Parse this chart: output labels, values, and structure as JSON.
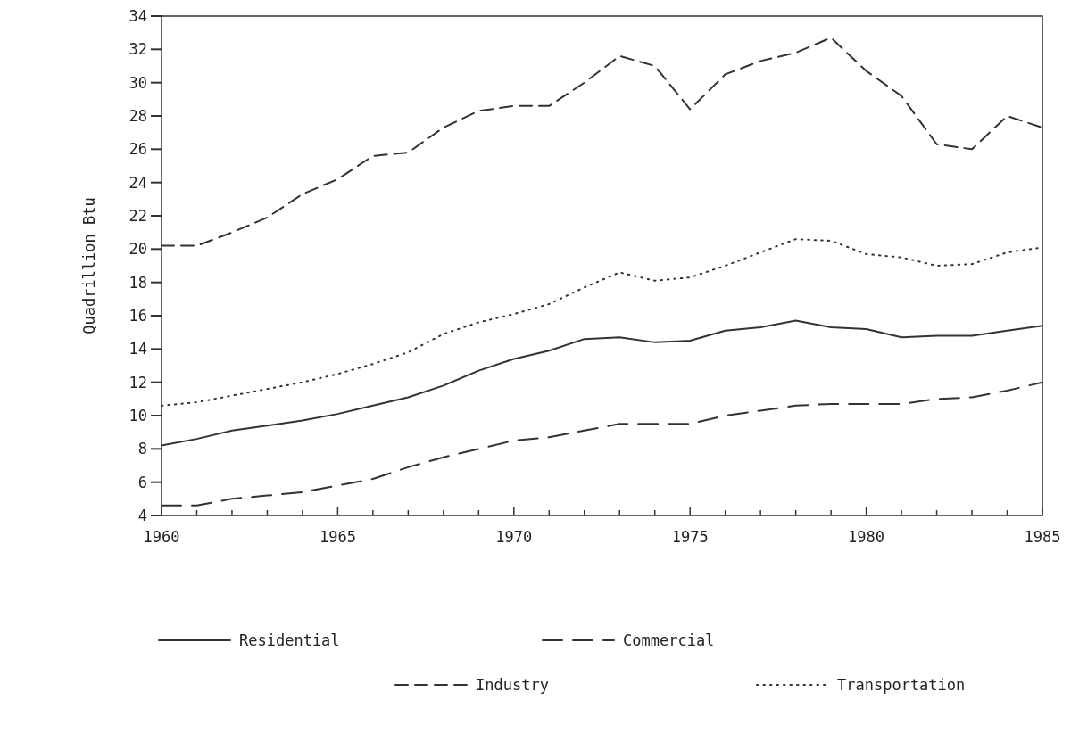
{
  "chart_data": {
    "type": "line",
    "ylabel": "Quadrillion Btu",
    "legend": "bottom",
    "grid": false,
    "x": [
      1960,
      1961,
      1962,
      1963,
      1964,
      1965,
      1966,
      1967,
      1968,
      1969,
      1970,
      1971,
      1972,
      1973,
      1974,
      1975,
      1976,
      1977,
      1978,
      1979,
      1980,
      1981,
      1982,
      1983,
      1984,
      1985
    ],
    "xlim": [
      1960,
      1985
    ],
    "xticks": [
      1960,
      {
        "value": 1961,
        "label": null
      },
      {
        "value": 1962,
        "label": null
      },
      {
        "value": 1963,
        "label": null
      },
      {
        "value": 1964,
        "label": null
      },
      1965,
      {
        "value": 1966,
        "label": null
      },
      {
        "value": 1967,
        "label": null
      },
      {
        "value": 1968,
        "label": null
      },
      {
        "value": 1969,
        "label": null
      },
      1970,
      {
        "value": 1971,
        "label": null
      },
      {
        "value": 1972,
        "label": null
      },
      {
        "value": 1973,
        "label": null
      },
      {
        "value": 1974,
        "label": null
      },
      1975,
      {
        "value": 1976,
        "label": null
      },
      {
        "value": 1977,
        "label": null
      },
      {
        "value": 1978,
        "label": null
      },
      {
        "value": 1979,
        "label": null
      },
      1980,
      {
        "value": 1981,
        "label": null
      },
      {
        "value": 1982,
        "label": null
      },
      {
        "value": 1983,
        "label": null
      },
      {
        "value": 1984,
        "label": null
      },
      1985
    ],
    "ylim": [
      4,
      34
    ],
    "yticks": [
      4,
      6,
      8,
      10,
      12,
      14,
      16,
      18,
      20,
      22,
      24,
      26,
      28,
      30,
      32,
      34
    ],
    "series": [
      {
        "name": "Residential",
        "color": "#333333",
        "line_style": "solid",
        "values": [
          8.2,
          8.6,
          9.1,
          9.4,
          9.7,
          10.1,
          10.6,
          11.1,
          11.8,
          12.7,
          13.4,
          13.9,
          14.6,
          14.7,
          14.4,
          14.5,
          15.1,
          15.3,
          15.7,
          15.3,
          15.2,
          14.7,
          14.8,
          14.8,
          15.1,
          15.4
        ]
      },
      {
        "name": "Commercial",
        "color": "#333333",
        "line_style": "dashed",
        "values": [
          4.6,
          4.6,
          5.0,
          5.2,
          5.4,
          5.8,
          6.2,
          6.9,
          7.5,
          8.0,
          8.5,
          8.7,
          9.1,
          9.5,
          9.5,
          9.5,
          10.0,
          10.3,
          10.6,
          10.7,
          10.7,
          10.7,
          11.0,
          11.1,
          11.5,
          12.0
        ]
      },
      {
        "name": "Industry",
        "color": "#333333",
        "line_style": "dashed",
        "values": [
          20.2,
          20.2,
          21.0,
          21.9,
          23.3,
          24.2,
          25.6,
          25.8,
          27.3,
          28.3,
          28.6,
          28.6,
          30.0,
          31.6,
          31.0,
          28.4,
          30.5,
          31.3,
          31.8,
          32.7,
          30.7,
          29.2,
          26.3,
          26.0,
          28.0,
          27.3
        ]
      },
      {
        "name": "Transportation",
        "color": "#333333",
        "line_style": "dotted",
        "values": [
          10.6,
          10.8,
          11.2,
          11.6,
          12.0,
          12.5,
          13.1,
          13.8,
          14.9,
          15.6,
          16.1,
          16.7,
          17.7,
          18.6,
          18.1,
          18.3,
          19.0,
          19.8,
          20.6,
          20.5,
          19.7,
          19.5,
          19.0,
          19.1,
          19.8,
          20.1
        ]
      }
    ]
  }
}
